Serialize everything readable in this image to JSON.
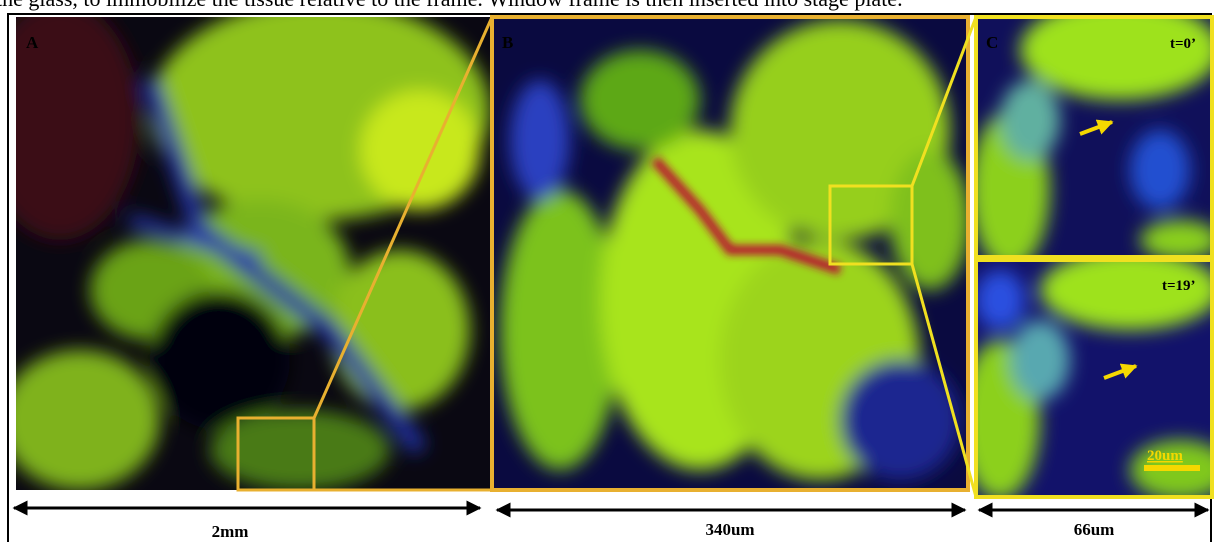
{
  "caption_fragment": "the glass, to immobilize the tissue relative to the frame. Window frame is then inserted into stage plate.",
  "panels": [
    {
      "label": "A",
      "scale": "2mm"
    },
    {
      "label": "B",
      "scale": "340um"
    },
    {
      "label": "C",
      "scale": "66um",
      "frames": [
        "t=0’",
        "t=19’"
      ],
      "scale_bar": "20um"
    }
  ]
}
